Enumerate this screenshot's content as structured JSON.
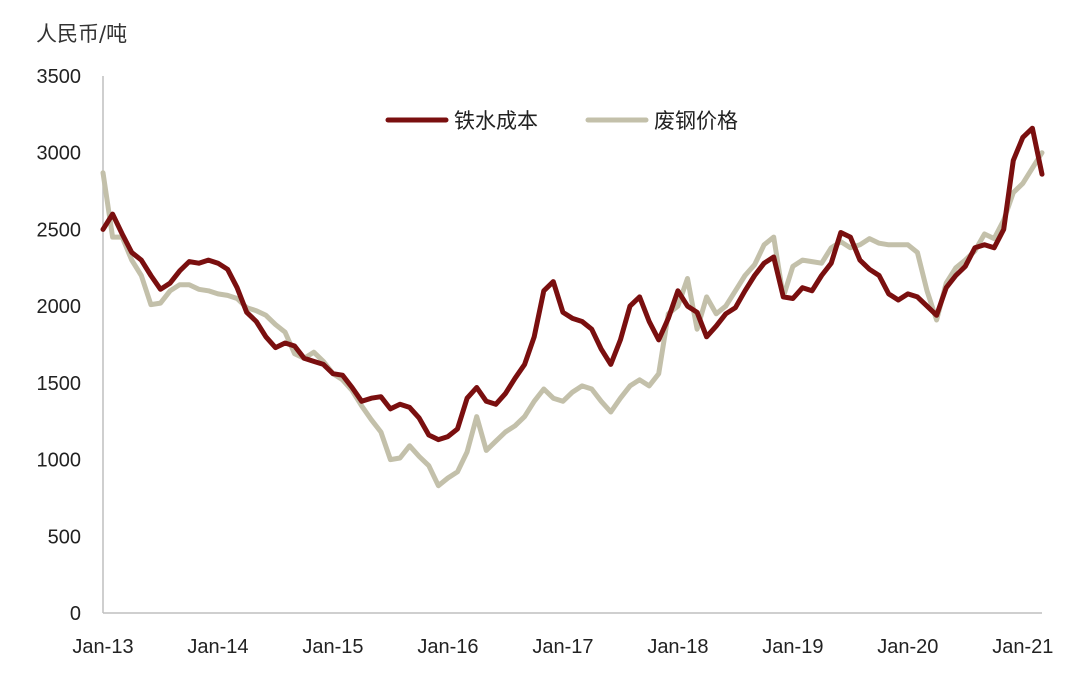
{
  "chart_data": {
    "type": "line",
    "unit_label": "人民币/吨",
    "ylim": [
      0,
      3500
    ],
    "yticks": [
      0,
      500,
      1000,
      1500,
      2000,
      2500,
      3000,
      3500
    ],
    "x_tick_labels": [
      "Jan-13",
      "Jan-14",
      "Jan-15",
      "Jan-16",
      "Jan-17",
      "Jan-18",
      "Jan-19",
      "Jan-20",
      "Jan-21"
    ],
    "x_range": [
      "2013-01",
      "2021-03"
    ],
    "grid": false,
    "legend_position": "top-center",
    "series": [
      {
        "name": "铁水成本",
        "color": "#7a0f0f",
        "points": [
          [
            "2013-01",
            2500
          ],
          [
            "2013-02",
            2600
          ],
          [
            "2013-03",
            2470
          ],
          [
            "2013-04",
            2350
          ],
          [
            "2013-05",
            2300
          ],
          [
            "2013-06",
            2200
          ],
          [
            "2013-07",
            2110
          ],
          [
            "2013-08",
            2150
          ],
          [
            "2013-09",
            2230
          ],
          [
            "2013-10",
            2290
          ],
          [
            "2013-11",
            2280
          ],
          [
            "2013-12",
            2300
          ],
          [
            "2014-01",
            2280
          ],
          [
            "2014-02",
            2240
          ],
          [
            "2014-03",
            2120
          ],
          [
            "2014-04",
            1960
          ],
          [
            "2014-05",
            1900
          ],
          [
            "2014-06",
            1800
          ],
          [
            "2014-07",
            1730
          ],
          [
            "2014-08",
            1760
          ],
          [
            "2014-09",
            1740
          ],
          [
            "2014-10",
            1660
          ],
          [
            "2014-11",
            1640
          ],
          [
            "2014-12",
            1620
          ],
          [
            "2015-01",
            1560
          ],
          [
            "2015-02",
            1550
          ],
          [
            "2015-03",
            1470
          ],
          [
            "2015-04",
            1380
          ],
          [
            "2015-05",
            1400
          ],
          [
            "2015-06",
            1410
          ],
          [
            "2015-07",
            1330
          ],
          [
            "2015-08",
            1360
          ],
          [
            "2015-09",
            1340
          ],
          [
            "2015-10",
            1270
          ],
          [
            "2015-11",
            1160
          ],
          [
            "2015-12",
            1130
          ],
          [
            "2016-01",
            1150
          ],
          [
            "2016-02",
            1200
          ],
          [
            "2016-03",
            1400
          ],
          [
            "2016-04",
            1470
          ],
          [
            "2016-05",
            1380
          ],
          [
            "2016-06",
            1360
          ],
          [
            "2016-07",
            1430
          ],
          [
            "2016-08",
            1530
          ],
          [
            "2016-09",
            1620
          ],
          [
            "2016-10",
            1800
          ],
          [
            "2016-11",
            2100
          ],
          [
            "2016-12",
            2160
          ],
          [
            "2017-01",
            1960
          ],
          [
            "2017-02",
            1920
          ],
          [
            "2017-03",
            1900
          ],
          [
            "2017-04",
            1850
          ],
          [
            "2017-05",
            1720
          ],
          [
            "2017-06",
            1620
          ],
          [
            "2017-07",
            1780
          ],
          [
            "2017-08",
            2000
          ],
          [
            "2017-09",
            2060
          ],
          [
            "2017-10",
            1900
          ],
          [
            "2017-11",
            1780
          ],
          [
            "2017-12",
            1920
          ],
          [
            "2018-01",
            2100
          ],
          [
            "2018-02",
            2000
          ],
          [
            "2018-03",
            1960
          ],
          [
            "2018-04",
            1800
          ],
          [
            "2018-05",
            1870
          ],
          [
            "2018-06",
            1950
          ],
          [
            "2018-07",
            1990
          ],
          [
            "2018-08",
            2100
          ],
          [
            "2018-09",
            2200
          ],
          [
            "2018-10",
            2280
          ],
          [
            "2018-11",
            2320
          ],
          [
            "2018-12",
            2060
          ],
          [
            "2019-01",
            2050
          ],
          [
            "2019-02",
            2120
          ],
          [
            "2019-03",
            2100
          ],
          [
            "2019-04",
            2200
          ],
          [
            "2019-05",
            2280
          ],
          [
            "2019-06",
            2480
          ],
          [
            "2019-07",
            2450
          ],
          [
            "2019-08",
            2300
          ],
          [
            "2019-09",
            2240
          ],
          [
            "2019-10",
            2200
          ],
          [
            "2019-11",
            2080
          ],
          [
            "2019-12",
            2040
          ],
          [
            "2020-01",
            2080
          ],
          [
            "2020-02",
            2060
          ],
          [
            "2020-03",
            2000
          ],
          [
            "2020-04",
            1940
          ],
          [
            "2020-05",
            2120
          ],
          [
            "2020-06",
            2200
          ],
          [
            "2020-07",
            2260
          ],
          [
            "2020-08",
            2380
          ],
          [
            "2020-09",
            2400
          ],
          [
            "2020-10",
            2380
          ],
          [
            "2020-11",
            2500
          ],
          [
            "2020-12",
            2950
          ],
          [
            "2021-01",
            3100
          ],
          [
            "2021-02",
            3160
          ],
          [
            "2021-03",
            2860
          ]
        ]
      },
      {
        "name": "废钢价格",
        "color": "#c3c0aa",
        "points": [
          [
            "2013-01",
            2870
          ],
          [
            "2013-02",
            2450
          ],
          [
            "2013-03",
            2450
          ],
          [
            "2013-04",
            2300
          ],
          [
            "2013-05",
            2200
          ],
          [
            "2013-06",
            2010
          ],
          [
            "2013-07",
            2020
          ],
          [
            "2013-08",
            2100
          ],
          [
            "2013-09",
            2140
          ],
          [
            "2013-10",
            2140
          ],
          [
            "2013-11",
            2110
          ],
          [
            "2013-12",
            2100
          ],
          [
            "2014-01",
            2080
          ],
          [
            "2014-02",
            2070
          ],
          [
            "2014-03",
            2050
          ],
          [
            "2014-04",
            1990
          ],
          [
            "2014-05",
            1970
          ],
          [
            "2014-06",
            1940
          ],
          [
            "2014-07",
            1880
          ],
          [
            "2014-08",
            1830
          ],
          [
            "2014-09",
            1690
          ],
          [
            "2014-10",
            1660
          ],
          [
            "2014-11",
            1700
          ],
          [
            "2014-12",
            1640
          ],
          [
            "2015-01",
            1560
          ],
          [
            "2015-02",
            1520
          ],
          [
            "2015-03",
            1450
          ],
          [
            "2015-04",
            1350
          ],
          [
            "2015-05",
            1260
          ],
          [
            "2015-06",
            1180
          ],
          [
            "2015-07",
            1000
          ],
          [
            "2015-08",
            1010
          ],
          [
            "2015-09",
            1090
          ],
          [
            "2015-10",
            1020
          ],
          [
            "2015-11",
            960
          ],
          [
            "2015-12",
            830
          ],
          [
            "2016-01",
            880
          ],
          [
            "2016-02",
            920
          ],
          [
            "2016-03",
            1050
          ],
          [
            "2016-04",
            1280
          ],
          [
            "2016-05",
            1060
          ],
          [
            "2016-06",
            1120
          ],
          [
            "2016-07",
            1180
          ],
          [
            "2016-08",
            1220
          ],
          [
            "2016-09",
            1280
          ],
          [
            "2016-10",
            1380
          ],
          [
            "2016-11",
            1460
          ],
          [
            "2016-12",
            1400
          ],
          [
            "2017-01",
            1380
          ],
          [
            "2017-02",
            1440
          ],
          [
            "2017-03",
            1480
          ],
          [
            "2017-04",
            1460
          ],
          [
            "2017-05",
            1380
          ],
          [
            "2017-06",
            1310
          ],
          [
            "2017-07",
            1400
          ],
          [
            "2017-08",
            1480
          ],
          [
            "2017-09",
            1520
          ],
          [
            "2017-10",
            1480
          ],
          [
            "2017-11",
            1560
          ],
          [
            "2017-12",
            1950
          ],
          [
            "2018-01",
            2000
          ],
          [
            "2018-02",
            2180
          ],
          [
            "2018-03",
            1850
          ],
          [
            "2018-04",
            2060
          ],
          [
            "2018-05",
            1950
          ],
          [
            "2018-06",
            2000
          ],
          [
            "2018-07",
            2100
          ],
          [
            "2018-08",
            2200
          ],
          [
            "2018-09",
            2270
          ],
          [
            "2018-10",
            2400
          ],
          [
            "2018-11",
            2450
          ],
          [
            "2018-12",
            2060
          ],
          [
            "2019-01",
            2260
          ],
          [
            "2019-02",
            2300
          ],
          [
            "2019-03",
            2290
          ],
          [
            "2019-04",
            2280
          ],
          [
            "2019-05",
            2380
          ],
          [
            "2019-06",
            2420
          ],
          [
            "2019-07",
            2380
          ],
          [
            "2019-08",
            2400
          ],
          [
            "2019-09",
            2440
          ],
          [
            "2019-10",
            2410
          ],
          [
            "2019-11",
            2400
          ],
          [
            "2019-12",
            2400
          ],
          [
            "2020-01",
            2400
          ],
          [
            "2020-02",
            2350
          ],
          [
            "2020-03",
            2100
          ],
          [
            "2020-04",
            1910
          ],
          [
            "2020-05",
            2150
          ],
          [
            "2020-06",
            2250
          ],
          [
            "2020-07",
            2300
          ],
          [
            "2020-08",
            2360
          ],
          [
            "2020-09",
            2470
          ],
          [
            "2020-10",
            2440
          ],
          [
            "2020-11",
            2560
          ],
          [
            "2020-12",
            2740
          ],
          [
            "2021-01",
            2800
          ],
          [
            "2021-02",
            2900
          ],
          [
            "2021-03",
            3000
          ]
        ]
      }
    ]
  }
}
